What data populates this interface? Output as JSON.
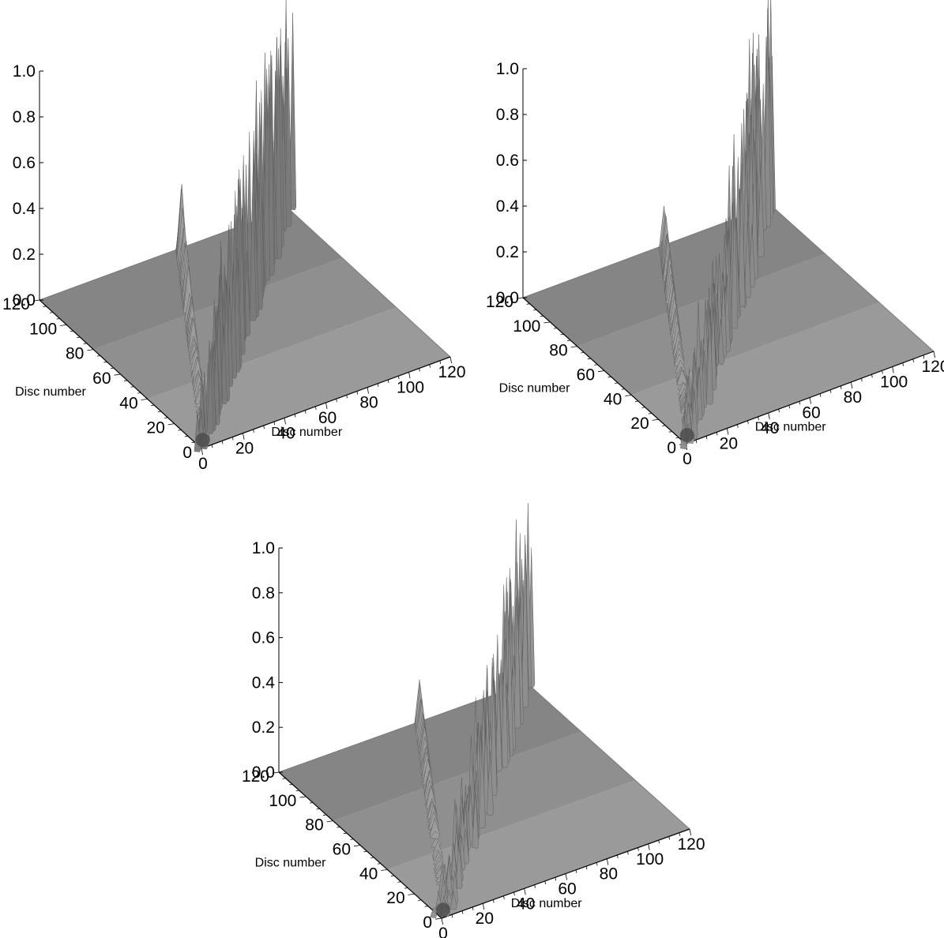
{
  "figure": {
    "panel_count": 3
  },
  "chart_data": [
    {
      "type": "surface",
      "panel": "top-left",
      "title": "",
      "zlabel": "",
      "xlabel": "Disc number",
      "ylabel": "Disc number",
      "zlim": [
        0.0,
        1.0
      ],
      "xlim": [
        0,
        120
      ],
      "ylim": [
        0,
        120
      ],
      "z_ticks": [
        "0.0",
        "0.2",
        "0.4",
        "0.6",
        "0.8",
        "1.0"
      ],
      "x_ticks": [
        "0",
        "20",
        "40",
        "60",
        "80",
        "100",
        "120"
      ],
      "y_ticks": [
        "0",
        "20",
        "40",
        "60",
        "80",
        "100",
        "120"
      ],
      "surface_color": "#7a7a7a",
      "floor_color": "#8c8c8c",
      "diagonal_peak_profile": [
        [
          0,
          0.25
        ],
        [
          10,
          0.4
        ],
        [
          20,
          0.55
        ],
        [
          40,
          0.68
        ],
        [
          60,
          0.78
        ],
        [
          80,
          0.88
        ],
        [
          100,
          0.96
        ],
        [
          120,
          1.0
        ]
      ],
      "secondary_ridge_max": 0.35
    },
    {
      "type": "surface",
      "panel": "top-right",
      "title": "",
      "zlabel": "",
      "xlabel": "Disc number",
      "ylabel": "Disc number",
      "zlim": [
        0.0,
        1.0
      ],
      "xlim": [
        0,
        120
      ],
      "ylim": [
        0,
        120
      ],
      "z_ticks": [
        "0.0",
        "0.2",
        "0.4",
        "0.6",
        "0.8",
        "1.0"
      ],
      "x_ticks": [
        "0",
        "20",
        "40",
        "60",
        "80",
        "100",
        "120"
      ],
      "y_ticks": [
        "0",
        "20",
        "40",
        "60",
        "80",
        "100",
        "120"
      ],
      "surface_color": "#8a8a8a",
      "floor_color": "#8c8c8c",
      "diagonal_peak_profile": [
        [
          0,
          0.15
        ],
        [
          10,
          0.3
        ],
        [
          20,
          0.4
        ],
        [
          40,
          0.5
        ],
        [
          60,
          0.6
        ],
        [
          80,
          0.75
        ],
        [
          100,
          0.9
        ],
        [
          120,
          1.05
        ]
      ],
      "secondary_ridge_max": 0.25
    },
    {
      "type": "surface",
      "panel": "bottom-center",
      "title": "",
      "zlabel": "",
      "xlabel": "Disc number",
      "ylabel": "Disc number",
      "zlim": [
        0.0,
        1.0
      ],
      "xlim": [
        0,
        120
      ],
      "ylim": [
        0,
        120
      ],
      "z_ticks": [
        "0.0",
        "0.2",
        "0.4",
        "0.6",
        "0.8",
        "1.0"
      ],
      "x_ticks": [
        "0",
        "20",
        "40",
        "60",
        "80",
        "100",
        "120"
      ],
      "y_ticks": [
        "0",
        "20",
        "40",
        "60",
        "80",
        "100",
        "120"
      ],
      "surface_color": "#8e8e8e",
      "floor_color": "#8c8c8c",
      "diagonal_peak_profile": [
        [
          0,
          0.1
        ],
        [
          10,
          0.15
        ],
        [
          20,
          0.25
        ],
        [
          40,
          0.4
        ],
        [
          60,
          0.5
        ],
        [
          80,
          0.62
        ],
        [
          100,
          0.8
        ],
        [
          120,
          0.98
        ]
      ],
      "secondary_ridge_max": 0.2
    }
  ]
}
